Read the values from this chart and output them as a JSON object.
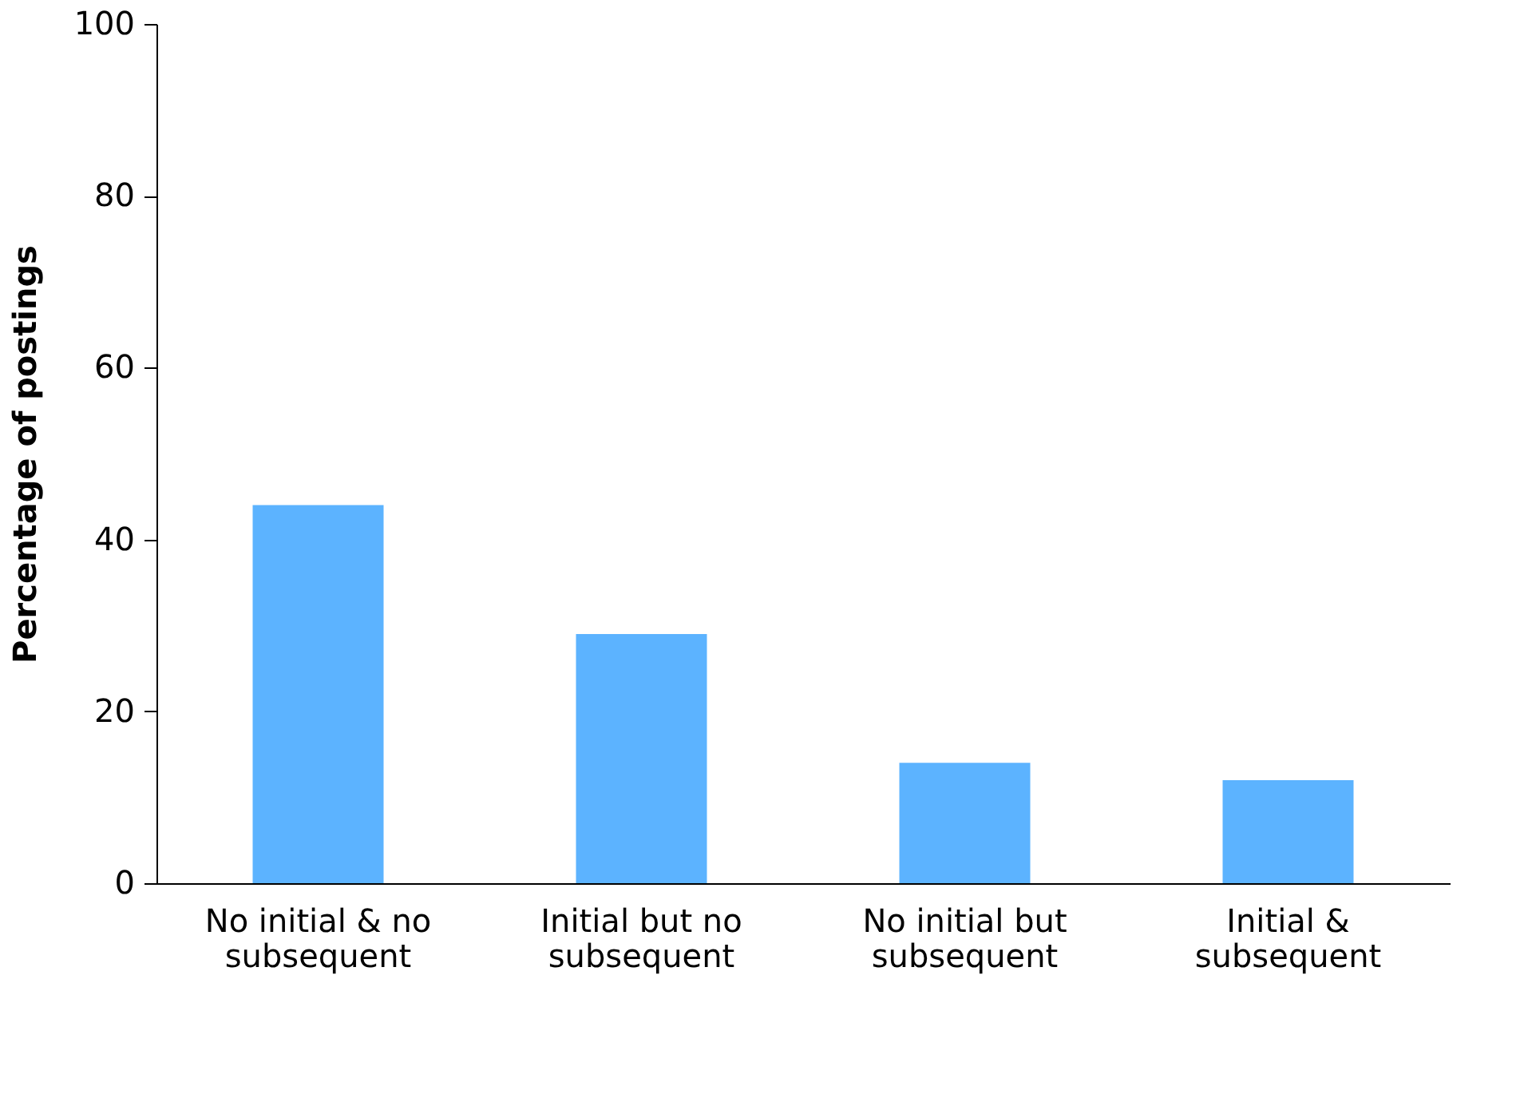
{
  "chart_data": {
    "type": "bar",
    "ylabel": "Percentage of postings",
    "categories": [
      "No initial & no subsequent",
      "Initial but no subsequent",
      "No initial but subsequent",
      "Initial & subsequent"
    ],
    "values": [
      44,
      29,
      14,
      12
    ],
    "color": "#5cb3ff",
    "ylim": [
      0,
      100
    ],
    "yticks": [
      0,
      20,
      40,
      60,
      80,
      100
    ],
    "grid": false
  }
}
